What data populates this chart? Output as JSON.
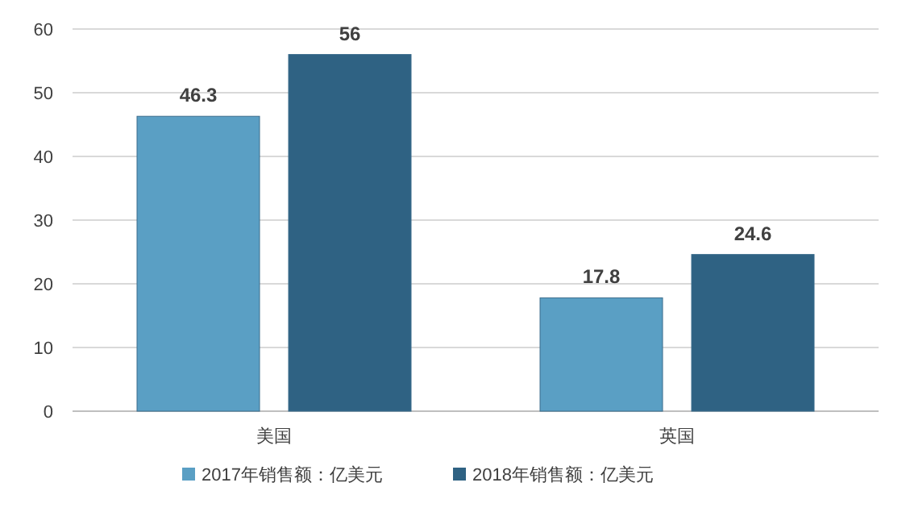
{
  "chart_data": {
    "type": "bar",
    "categories": [
      "美国",
      "英国"
    ],
    "series": [
      {
        "name": "2017年销售额：亿美元",
        "color": "#5a9fc4",
        "values": [
          46.3,
          17.8
        ]
      },
      {
        "name": "2018年销售额：亿美元",
        "color": "#2f6283",
        "values": [
          56,
          24.6
        ]
      }
    ],
    "ylim": [
      0,
      60
    ],
    "yticks": [
      0,
      10,
      20,
      30,
      40,
      50,
      60
    ],
    "grid": "y",
    "legend": "bottom",
    "data_labels": true
  }
}
